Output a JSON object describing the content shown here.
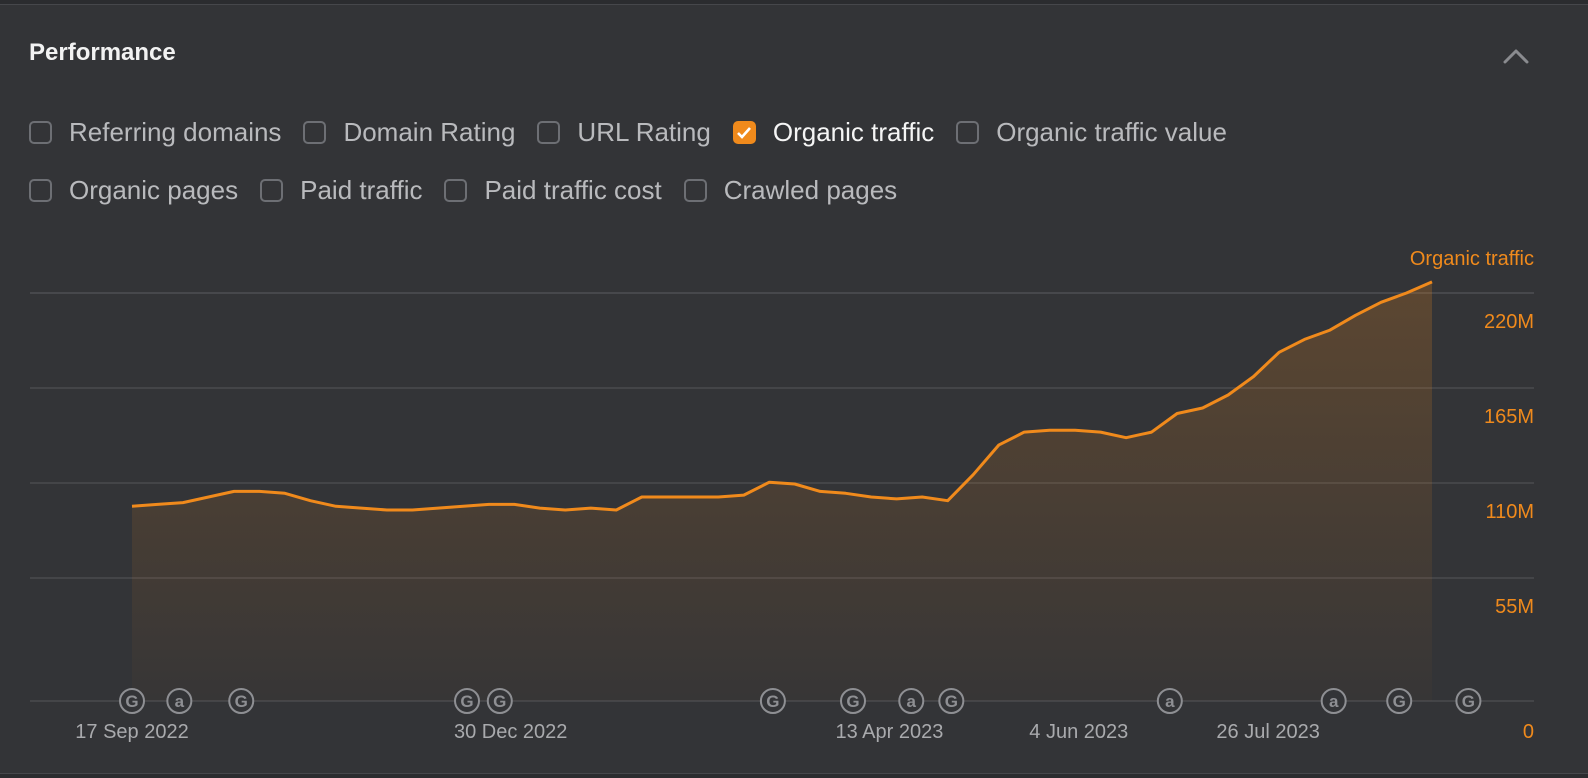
{
  "panel": {
    "title": "Performance",
    "collapse_icon": "chevron-up-icon"
  },
  "filters": [
    {
      "label": "Referring domains",
      "checked": false
    },
    {
      "label": "Domain Rating",
      "checked": false
    },
    {
      "label": "URL Rating",
      "checked": false
    },
    {
      "label": "Organic traffic",
      "checked": true
    },
    {
      "label": "Organic traffic value",
      "checked": false
    },
    {
      "label": "Organic pages",
      "checked": false
    },
    {
      "label": "Paid traffic",
      "checked": false
    },
    {
      "label": "Paid traffic cost",
      "checked": false
    },
    {
      "label": "Crawled pages",
      "checked": false
    }
  ],
  "colors": {
    "accent": "#f08a1c",
    "background": "#333437",
    "grid": "#4a4b4f",
    "axis_text": "#a9aaad",
    "marker": "#8e8f93"
  },
  "chart_data": {
    "type": "area",
    "series": [
      {
        "name": "Organic traffic",
        "x": [
          "2022-09-17",
          "2022-09-24",
          "2022-10-01",
          "2022-10-08",
          "2022-10-15",
          "2022-10-22",
          "2022-10-29",
          "2022-11-05",
          "2022-11-12",
          "2022-11-19",
          "2022-11-26",
          "2022-12-03",
          "2022-12-10",
          "2022-12-17",
          "2022-12-24",
          "2022-12-31",
          "2023-01-07",
          "2023-01-14",
          "2023-01-21",
          "2023-01-28",
          "2023-02-04",
          "2023-02-11",
          "2023-02-18",
          "2023-02-25",
          "2023-03-04",
          "2023-03-11",
          "2023-03-18",
          "2023-03-25",
          "2023-04-01",
          "2023-04-08",
          "2023-04-15",
          "2023-04-22",
          "2023-04-29",
          "2023-05-06",
          "2023-05-13",
          "2023-05-20",
          "2023-05-27",
          "2023-06-03",
          "2023-06-10",
          "2023-06-17",
          "2023-06-24",
          "2023-07-01",
          "2023-07-08",
          "2023-07-15",
          "2023-07-22",
          "2023-07-29",
          "2023-08-05",
          "2023-08-12",
          "2023-08-19",
          "2023-08-26",
          "2023-09-02",
          "2023-09-09"
        ],
        "values": [
          105,
          106,
          107,
          110,
          113,
          113,
          112,
          108,
          105,
          104,
          103,
          103,
          104,
          105,
          106,
          106,
          104,
          103,
          104,
          103,
          110,
          110,
          110,
          110,
          111,
          118,
          117,
          113,
          112,
          110,
          109,
          110,
          108,
          122,
          138,
          145,
          146,
          146,
          145,
          142,
          145,
          155,
          158,
          165,
          175,
          188,
          195,
          200,
          208,
          215,
          220,
          226
        ]
      }
    ],
    "x_tick_labels": [
      "17 Sep 2022",
      "30 Dec 2022",
      "13 Apr 2023",
      "4 Jun 2023",
      "26 Jul 2023"
    ],
    "x_tick_dates": [
      "2022-09-17",
      "2022-12-30",
      "2023-04-13",
      "2023-06-04",
      "2023-07-26"
    ],
    "y_axis_title": "Organic traffic",
    "y_tick_labels": [
      "0",
      "55M",
      "110M",
      "165M",
      "220M"
    ],
    "y_tick_values": [
      0,
      55,
      110,
      165,
      220
    ],
    "ylim": [
      0,
      220
    ],
    "y_unit": "M",
    "grid": true,
    "annotation_markers": [
      {
        "date": "2022-09-17",
        "symbol": "G"
      },
      {
        "date": "2022-09-30",
        "symbol": "a"
      },
      {
        "date": "2022-10-17",
        "symbol": "G"
      },
      {
        "date": "2022-12-18",
        "symbol": "G"
      },
      {
        "date": "2022-12-27",
        "symbol": "G"
      },
      {
        "date": "2023-03-12",
        "symbol": "G"
      },
      {
        "date": "2023-04-03",
        "symbol": "G"
      },
      {
        "date": "2023-04-19",
        "symbol": "a"
      },
      {
        "date": "2023-04-30",
        "symbol": "G"
      },
      {
        "date": "2023-06-29",
        "symbol": "a"
      },
      {
        "date": "2023-08-13",
        "symbol": "a"
      },
      {
        "date": "2023-08-31",
        "symbol": "G"
      },
      {
        "date": "2023-09-19",
        "symbol": "G"
      }
    ]
  }
}
